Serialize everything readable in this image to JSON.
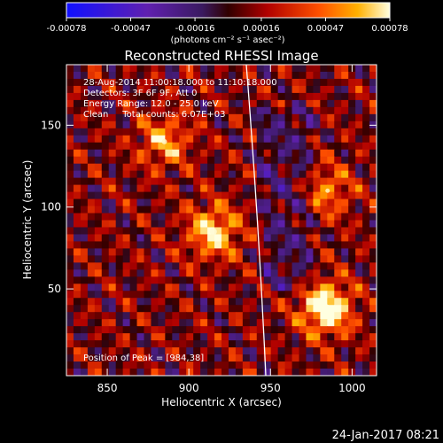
{
  "chart_data": {
    "type": "heatmap",
    "title": "Reconstructed RHESSI Image",
    "xlabel": "Heliocentric X (arcsec)",
    "ylabel": "Heliocentric Y (arcsec)",
    "xlim": [
      825,
      1015
    ],
    "ylim": [
      -3,
      187
    ],
    "x_ticks": [
      850,
      900,
      950,
      1000
    ],
    "y_ticks": [
      50,
      100,
      150
    ],
    "colorbar": {
      "range": [
        -0.00078,
        0.00078
      ],
      "tick_values": [
        -0.00078,
        -0.00047,
        -0.00016,
        0.00016,
        0.00047,
        0.00078
      ],
      "tick_labels": [
        "-0.00078",
        "-0.00047",
        "-0.00016",
        "0.00016",
        "0.00047",
        "0.00078"
      ],
      "units_label": "(photons cm⁻² s⁻¹ asec⁻²)"
    },
    "annotations": {
      "time_range": "28-Aug-2014 11:00:18.000 to 11:10:18.000",
      "detectors": "Detectors: 3F 6F 9F, Att 0",
      "energy_range": "Energy Range: 12.0 - 25.0 keV",
      "method": "Clean     Total counts: 6.07E+03",
      "peak": "Position of Peak = [984,38]"
    },
    "sources": [
      {
        "x": 984,
        "y": 38,
        "relative_intensity": 1.0
      },
      {
        "x": 915,
        "y": 85,
        "relative_intensity": 0.8
      },
      {
        "x": 885,
        "y": 140,
        "relative_intensity": 0.6
      },
      {
        "x": 985,
        "y": 110,
        "relative_intensity": 0.5
      }
    ],
    "limb_present": true,
    "grid": false
  },
  "footer": {
    "date_stamp": "24-Jan-2017 08:21"
  }
}
